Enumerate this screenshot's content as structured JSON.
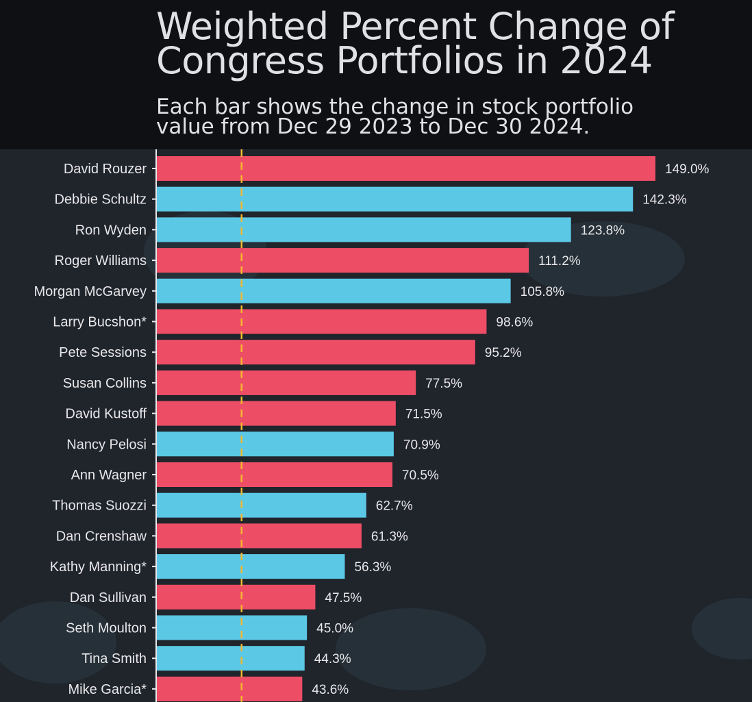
{
  "header": {
    "title_line1": "Weighted Percent Change of",
    "title_line2": "Congress Portfolios in 2024",
    "subtitle_line1": "Each bar shows the change in stock portfolio",
    "subtitle_line2": "value from Dec 29 2023 to Dec 30 2024."
  },
  "colors": {
    "background": "#20242b",
    "header_background": "#0f1013",
    "republican": "#ee4d66",
    "democrat": "#5bc8e6",
    "reference_line": "#f5b82e",
    "text": "#e8e8ea"
  },
  "chart_data": {
    "type": "bar",
    "orientation": "horizontal",
    "title": "Weighted Percent Change of Congress Portfolios in 2024",
    "subtitle": "Each bar shows the change in stock portfolio value from Dec 29 2023 to Dec 30 2024.",
    "xlim": [
      0,
      155
    ],
    "reference_line_x": 25.5,
    "categories": [
      "David Rouzer",
      "Debbie Schultz",
      "Ron Wyden",
      "Roger Williams",
      "Morgan McGarvey",
      "Larry Bucshon*",
      "Pete Sessions",
      "Susan Collins",
      "David Kustoff",
      "Nancy Pelosi",
      "Ann Wagner",
      "Thomas Suozzi",
      "Dan Crenshaw",
      "Kathy Manning*",
      "Dan Sullivan",
      "Seth Moulton",
      "Tina Smith",
      "Mike Garcia*"
    ],
    "values": [
      149.0,
      142.3,
      123.8,
      111.2,
      105.8,
      98.6,
      95.2,
      77.5,
      71.5,
      70.9,
      70.5,
      62.7,
      61.3,
      56.3,
      47.5,
      45.0,
      44.3,
      43.6
    ],
    "value_labels": [
      "149.0%",
      "142.3%",
      "123.8%",
      "111.2%",
      "105.8%",
      "98.6%",
      "95.2%",
      "77.5%",
      "71.5%",
      "70.9%",
      "70.5%",
      "62.7%",
      "61.3%",
      "56.3%",
      "47.5%",
      "45.0%",
      "44.3%",
      "43.6%"
    ],
    "party": [
      "R",
      "D",
      "D",
      "R",
      "D",
      "R",
      "R",
      "R",
      "R",
      "D",
      "R",
      "D",
      "R",
      "D",
      "R",
      "D",
      "D",
      "R"
    ]
  }
}
